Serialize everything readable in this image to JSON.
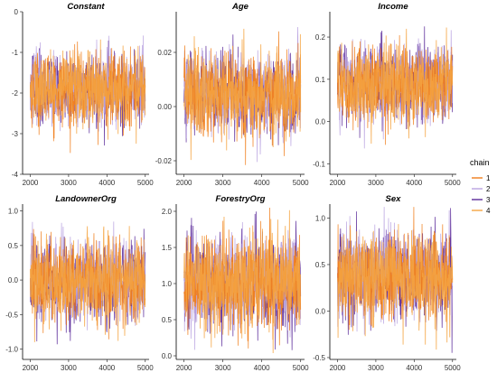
{
  "chart_data": {
    "type": "line",
    "legend": {
      "title": "chain",
      "placement": "right",
      "entries": [
        "1",
        "2",
        "3",
        "4"
      ]
    },
    "series_colors": [
      "#f07d1a",
      "#b9a3e0",
      "#5b2a9a",
      "#f5a542"
    ],
    "grid": false,
    "panels": [
      {
        "title": "Constant",
        "xlim": [
          1800,
          5100
        ],
        "xticks": [
          2000,
          3000,
          4000,
          5000
        ],
        "ylim": [
          -4,
          0
        ],
        "yticks": [
          -4,
          -3,
          -2,
          -1,
          0
        ],
        "yticklabels": [
          "-4",
          "-3",
          "-2",
          "-1",
          "0"
        ],
        "center": -1.9,
        "spread": 0.45,
        "low": -3.85,
        "high": -0.2
      },
      {
        "title": "Age",
        "xlim": [
          1800,
          5100
        ],
        "xticks": [
          2000,
          3000,
          4000,
          5000
        ],
        "ylim": [
          -0.025,
          0.035
        ],
        "yticks": [
          -0.02,
          0.0,
          0.02
        ],
        "yticklabels": [
          "-0.02",
          "0.00",
          "0.02"
        ],
        "center": 0.005,
        "spread": 0.0075,
        "low": -0.024,
        "high": 0.031
      },
      {
        "title": "Income",
        "xlim": [
          1800,
          5100
        ],
        "xticks": [
          2000,
          3000,
          4000,
          5000
        ],
        "ylim": [
          -0.125,
          0.26
        ],
        "yticks": [
          -0.1,
          0.0,
          0.1,
          0.2
        ],
        "yticklabels": [
          "-0.1",
          "0.0",
          "0.1",
          "0.2"
        ],
        "center": 0.09,
        "spread": 0.045,
        "low": -0.11,
        "high": 0.245
      },
      {
        "title": "LandownerOrg",
        "xlim": [
          1800,
          5100
        ],
        "xticks": [
          2000,
          3000,
          4000,
          5000
        ],
        "ylim": [
          -1.15,
          1.1
        ],
        "yticks": [
          -1.0,
          -0.5,
          0.0,
          0.5,
          1.0
        ],
        "yticklabels": [
          "-1.0",
          "-0.5",
          "0.0",
          "0.5",
          "1.0"
        ],
        "center": 0.0,
        "spread": 0.3,
        "low": -1.05,
        "high": 1.05
      },
      {
        "title": "ForestryOrg",
        "xlim": [
          1800,
          5100
        ],
        "xticks": [
          2000,
          3000,
          4000,
          5000
        ],
        "ylim": [
          -0.05,
          2.1
        ],
        "yticks": [
          0.0,
          0.5,
          1.0,
          1.5,
          2.0
        ],
        "yticklabels": [
          "0.0",
          "0.5",
          "1.0",
          "1.5",
          "2.0"
        ],
        "center": 1.0,
        "spread": 0.32,
        "low": 0.02,
        "high": 2.05
      },
      {
        "title": "Sex",
        "xlim": [
          1800,
          5100
        ],
        "xticks": [
          2000,
          3000,
          4000,
          5000
        ],
        "ylim": [
          -0.52,
          1.15
        ],
        "yticks": [
          -0.5,
          0.0,
          0.5,
          1.0
        ],
        "yticklabels": [
          "-0.5",
          "0.0",
          "0.5",
          "1.0"
        ],
        "center": 0.37,
        "spread": 0.24,
        "low": -0.45,
        "high": 1.12
      }
    ]
  }
}
